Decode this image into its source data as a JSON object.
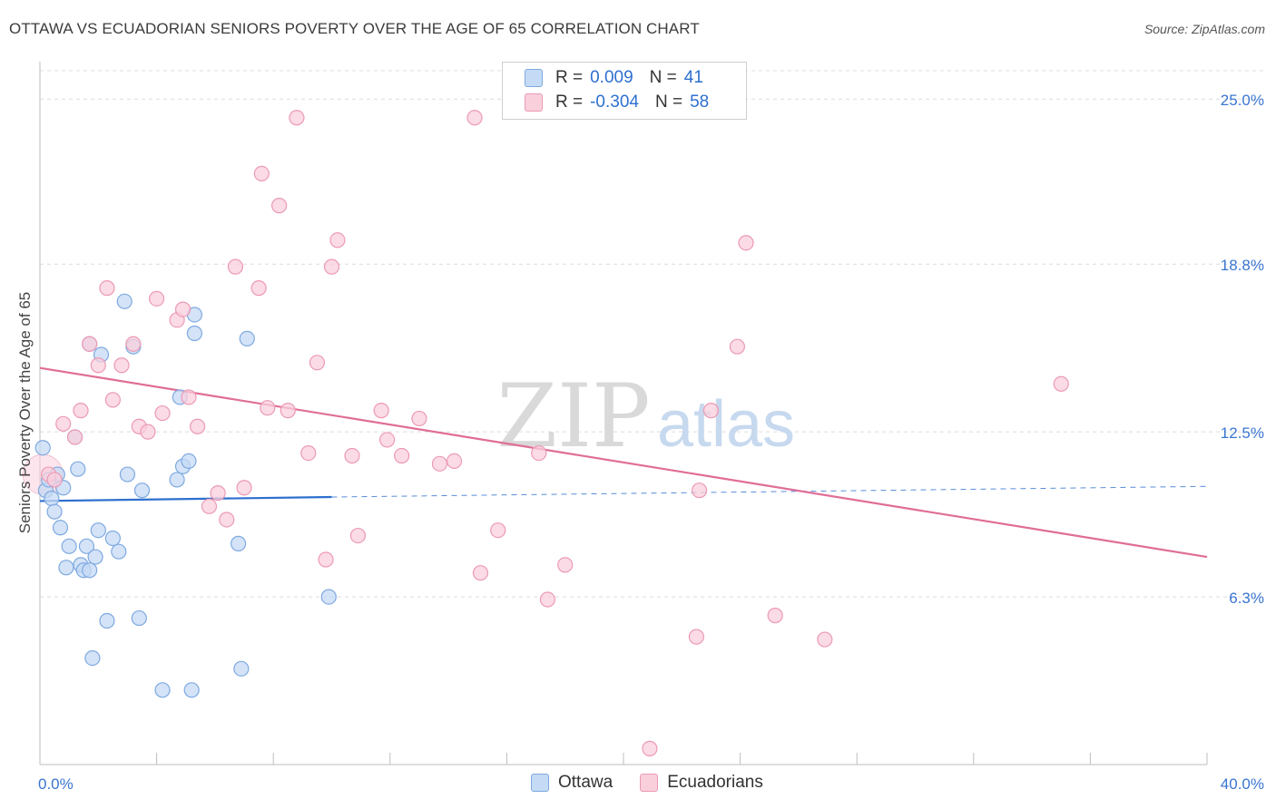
{
  "title": "OTTAWA VS ECUADORIAN SENIORS POVERTY OVER THE AGE OF 65 CORRELATION CHART",
  "source": "Source: ZipAtlas.com",
  "watermark": {
    "zip": "ZIP",
    "atlas": "atlas"
  },
  "colors": {
    "blue": "#7ea9e1",
    "blue_fill": "#c5daf4",
    "blue_line": "#2d6fcf",
    "pink": "#ec9ab4",
    "pink_fill": "#f9cfdc",
    "pink_line": "#e06d97",
    "axis_label": "#3a75d1"
  },
  "legend_top": {
    "rows": [
      {
        "r_label": "R =",
        "r_value": "0.009",
        "n_label": "N =",
        "n_value": "41"
      },
      {
        "r_label": "R =",
        "r_value": "-0.304",
        "n_label": "N =",
        "n_value": "58"
      }
    ]
  },
  "legend_bottom": [
    {
      "label": "Ottawa"
    },
    {
      "label": "Ecuadorians"
    }
  ],
  "chart_data": {
    "type": "scatter",
    "title": "OTTAWA VS ECUADORIAN SENIORS POVERTY OVER THE AGE OF 65 CORRELATION CHART",
    "xlabel": "",
    "ylabel": "Seniors Poverty Over the Age of 65",
    "xlim": [
      0,
      40
    ],
    "ylim": [
      0,
      26.2
    ],
    "x_tick_labels": [
      "0.0%",
      "40.0%"
    ],
    "y_ticks": [
      6.3,
      12.5,
      18.8,
      25.0
    ],
    "y_tick_labels": [
      "6.3%",
      "12.5%",
      "18.8%",
      "25.0%"
    ],
    "grid": true,
    "series": [
      {
        "name": "Ottawa",
        "points": [
          [
            0.1,
            11.9
          ],
          [
            0.2,
            10.3
          ],
          [
            0.4,
            10.0
          ],
          [
            0.5,
            9.5
          ],
          [
            0.6,
            10.9
          ],
          [
            0.7,
            8.9
          ],
          [
            0.8,
            10.4
          ],
          [
            0.9,
            7.4
          ],
          [
            1.0,
            8.2
          ],
          [
            1.2,
            12.3
          ],
          [
            1.3,
            11.1
          ],
          [
            1.4,
            7.5
          ],
          [
            1.5,
            7.3
          ],
          [
            1.6,
            8.2
          ],
          [
            1.7,
            7.3
          ],
          [
            1.7,
            15.8
          ],
          [
            1.8,
            4.0
          ],
          [
            1.9,
            7.8
          ],
          [
            2.0,
            8.8
          ],
          [
            2.1,
            15.4
          ],
          [
            2.3,
            5.4
          ],
          [
            2.5,
            8.5
          ],
          [
            2.7,
            8.0
          ],
          [
            2.9,
            17.4
          ],
          [
            3.0,
            10.9
          ],
          [
            3.2,
            15.7
          ],
          [
            3.4,
            5.5
          ],
          [
            3.5,
            10.3
          ],
          [
            4.2,
            2.8
          ],
          [
            4.7,
            10.7
          ],
          [
            4.8,
            13.8
          ],
          [
            4.9,
            11.2
          ],
          [
            5.1,
            11.4
          ],
          [
            5.2,
            2.8
          ],
          [
            5.3,
            16.2
          ],
          [
            5.3,
            16.9
          ],
          [
            6.8,
            8.3
          ],
          [
            6.9,
            3.6
          ],
          [
            7.1,
            16.0
          ],
          [
            9.9,
            6.3
          ],
          [
            0.3,
            10.7
          ]
        ]
      },
      {
        "name": "Ecuadorians",
        "points": [
          [
            0.3,
            10.9
          ],
          [
            0.5,
            10.7
          ],
          [
            0.8,
            12.8
          ],
          [
            1.2,
            12.3
          ],
          [
            1.4,
            13.3
          ],
          [
            1.7,
            15.8
          ],
          [
            2.0,
            15.0
          ],
          [
            2.3,
            17.9
          ],
          [
            2.5,
            13.7
          ],
          [
            2.8,
            15.0
          ],
          [
            3.2,
            15.8
          ],
          [
            3.4,
            12.7
          ],
          [
            3.7,
            12.5
          ],
          [
            4.0,
            17.5
          ],
          [
            4.2,
            13.2
          ],
          [
            4.7,
            16.7
          ],
          [
            4.9,
            17.1
          ],
          [
            5.1,
            13.8
          ],
          [
            5.4,
            12.7
          ],
          [
            5.8,
            9.7
          ],
          [
            6.1,
            10.2
          ],
          [
            6.4,
            9.2
          ],
          [
            6.7,
            18.7
          ],
          [
            7.0,
            10.4
          ],
          [
            7.5,
            17.9
          ],
          [
            7.6,
            22.2
          ],
          [
            7.8,
            13.4
          ],
          [
            8.2,
            21.0
          ],
          [
            8.5,
            13.3
          ],
          [
            8.8,
            24.3
          ],
          [
            9.2,
            11.7
          ],
          [
            9.5,
            15.1
          ],
          [
            9.8,
            7.7
          ],
          [
            10.0,
            18.7
          ],
          [
            10.2,
            19.7
          ],
          [
            10.7,
            11.6
          ],
          [
            10.9,
            8.6
          ],
          [
            11.7,
            13.3
          ],
          [
            11.9,
            12.2
          ],
          [
            12.4,
            11.6
          ],
          [
            13.0,
            13.0
          ],
          [
            13.7,
            11.3
          ],
          [
            14.2,
            11.4
          ],
          [
            14.9,
            24.3
          ],
          [
            15.1,
            7.2
          ],
          [
            15.7,
            8.8
          ],
          [
            17.1,
            11.7
          ],
          [
            17.4,
            6.2
          ],
          [
            18.0,
            7.5
          ],
          [
            20.9,
            0.6
          ],
          [
            22.5,
            4.8
          ],
          [
            22.6,
            10.3
          ],
          [
            23.0,
            13.3
          ],
          [
            23.9,
            15.7
          ],
          [
            24.2,
            19.6
          ],
          [
            25.2,
            5.6
          ],
          [
            26.9,
            4.7
          ],
          [
            35.0,
            14.3
          ]
        ]
      }
    ],
    "trendlines": [
      {
        "series": "Ottawa",
        "solid_x": [
          0,
          10
        ],
        "dashed_x": [
          10,
          40
        ],
        "y_at_0": 9.9,
        "y_at_10": 10.05,
        "y_at_40": 10.45
      },
      {
        "series": "Ecuadorians",
        "x": [
          0,
          40
        ],
        "y_at_0": 14.9,
        "y_at_40": 7.8
      }
    ],
    "large_point": {
      "series": "Ecuadorians",
      "x": 0.1,
      "y": 10.9
    }
  }
}
